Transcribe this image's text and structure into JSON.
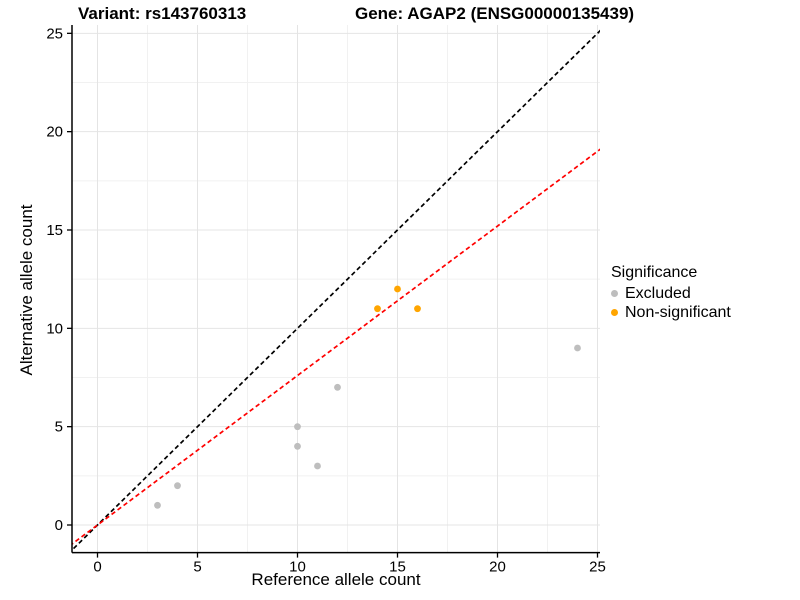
{
  "chart_data": {
    "type": "scatter",
    "titles": {
      "variant": "Variant: rs143760313",
      "gene": "Gene: AGAP2 (ENSG00000135439)"
    },
    "xlabel": "Reference allele count",
    "ylabel": "Alternative allele count",
    "x_ticks": [
      0,
      5,
      10,
      15,
      20,
      25
    ],
    "y_ticks": [
      0,
      5,
      10,
      15,
      20,
      25
    ],
    "xlim": [
      -1.28,
      25.13
    ],
    "ylim": [
      -1.37,
      25.42
    ],
    "grid": {
      "major": true,
      "minor": true
    },
    "series": [
      {
        "name": "Excluded",
        "color": "#BEBEBE",
        "points": [
          [
            3,
            1
          ],
          [
            4,
            2
          ],
          [
            10,
            4
          ],
          [
            10,
            5
          ],
          [
            11,
            3
          ],
          [
            12,
            7
          ],
          [
            24,
            9
          ]
        ]
      },
      {
        "name": "Non-significant",
        "color": "#FFA500",
        "points": [
          [
            14,
            11
          ],
          [
            15,
            12
          ],
          [
            16,
            11
          ]
        ]
      }
    ],
    "lines": [
      {
        "name": "identity-line",
        "color": "#000000",
        "style": "dashed",
        "slope": 1.0,
        "intercept": 0
      },
      {
        "name": "regression-line",
        "color": "#FF0000",
        "style": "dashed",
        "slope": 0.76,
        "intercept": 0
      }
    ],
    "legend": {
      "title": "Significance",
      "position": "right",
      "items": [
        "Excluded",
        "Non-significant"
      ]
    },
    "colors": {
      "axis": "#000000",
      "grid_major": "#E4E4E4",
      "grid_minor": "#F1F1F1",
      "text": "#000000"
    }
  }
}
